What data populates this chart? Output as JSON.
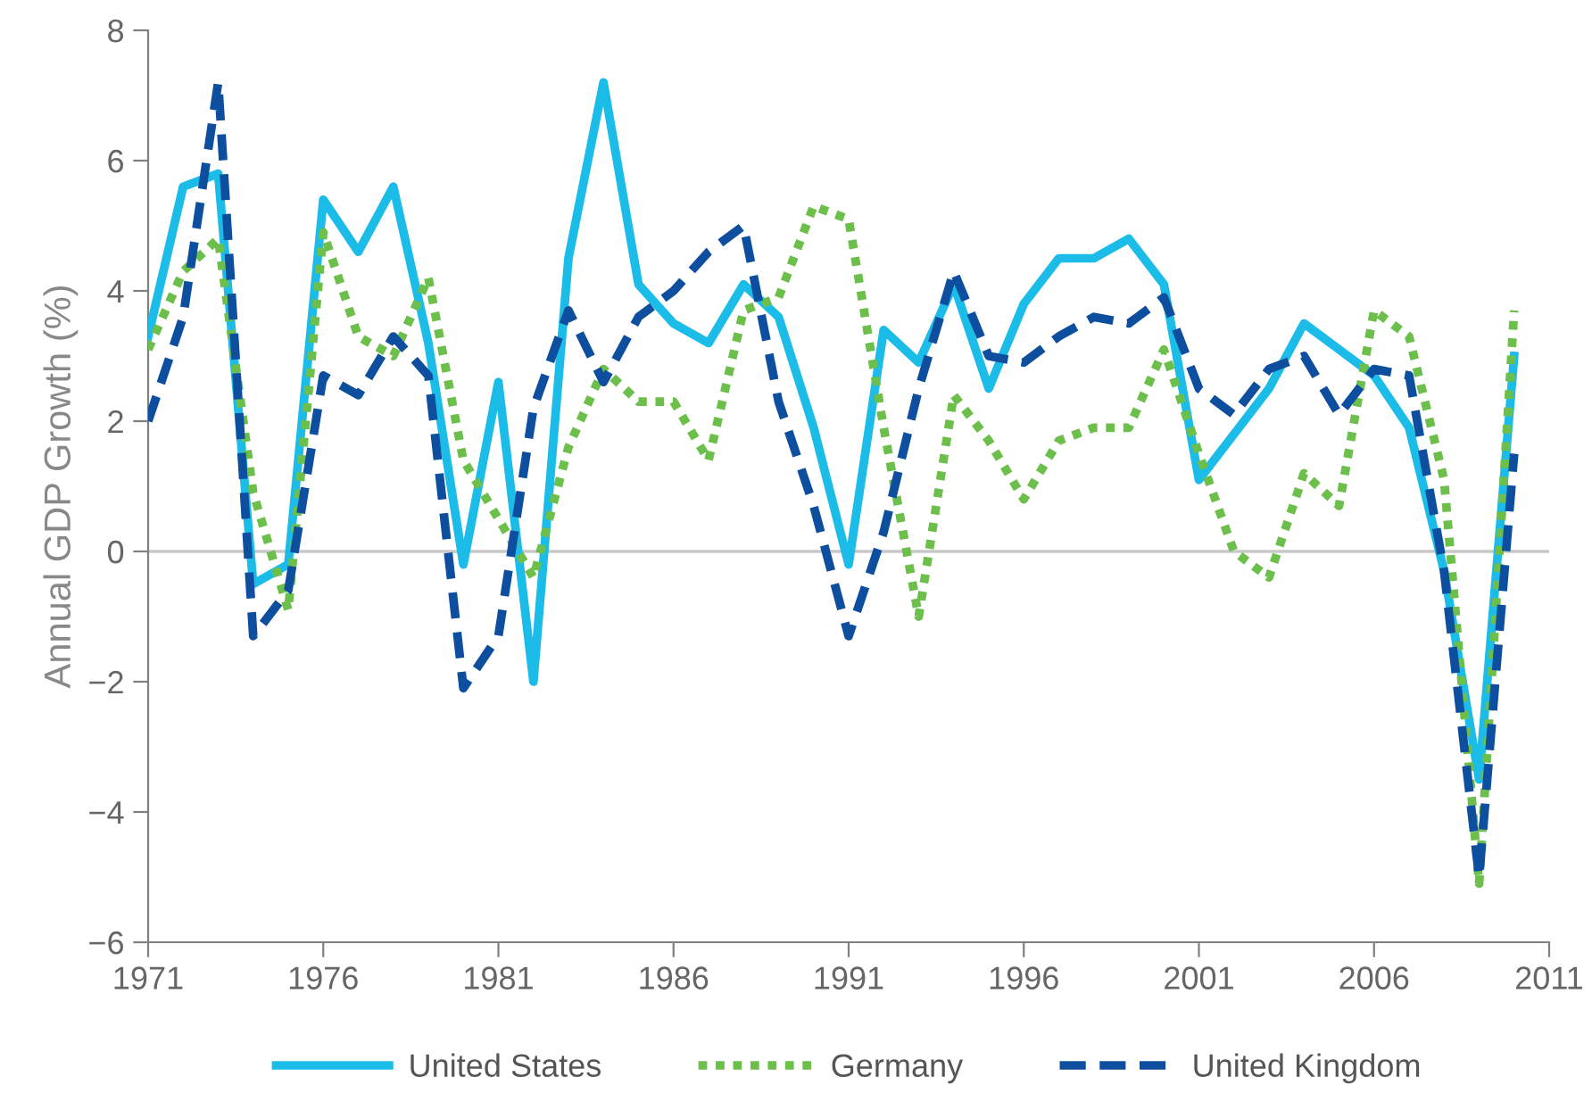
{
  "chart_data": {
    "type": "line",
    "ylabel": "Annual GDP Growth (%)",
    "x": [
      1971,
      1972,
      1973,
      1974,
      1975,
      1976,
      1977,
      1978,
      1979,
      1980,
      1981,
      1982,
      1983,
      1984,
      1985,
      1986,
      1987,
      1988,
      1989,
      1990,
      1991,
      1992,
      1993,
      1994,
      1995,
      1996,
      1997,
      1998,
      1999,
      2000,
      2001,
      2002,
      2003,
      2004,
      2005,
      2006,
      2007,
      2008,
      2009,
      2010
    ],
    "series": [
      {
        "name": "United States",
        "color": "#1cbce8",
        "line_style": "solid",
        "values": [
          3.3,
          5.6,
          5.8,
          -0.5,
          -0.2,
          5.4,
          4.6,
          5.6,
          3.2,
          -0.2,
          2.6,
          -2.0,
          4.5,
          7.2,
          4.1,
          3.5,
          3.2,
          4.1,
          3.6,
          1.9,
          -0.2,
          3.4,
          2.9,
          4.1,
          2.5,
          3.8,
          4.5,
          4.5,
          4.8,
          4.1,
          1.1,
          1.8,
          2.5,
          3.5,
          3.1,
          2.7,
          1.9,
          -0.3,
          -3.5,
          3.0
        ]
      },
      {
        "name": "Germany",
        "color": "#6cbf4a",
        "line_style": "dotted",
        "values": [
          3.1,
          4.3,
          4.8,
          0.9,
          -0.9,
          4.9,
          3.3,
          3.0,
          4.2,
          1.4,
          0.5,
          -0.4,
          1.6,
          2.8,
          2.3,
          2.3,
          1.4,
          3.7,
          3.9,
          5.3,
          5.1,
          1.9,
          -1.0,
          2.4,
          1.7,
          0.8,
          1.7,
          1.9,
          1.9,
          3.1,
          1.5,
          0.0,
          -0.4,
          1.2,
          0.7,
          3.7,
          3.3,
          1.1,
          -5.1,
          3.7
        ]
      },
      {
        "name": "United Kingdom",
        "color": "#0d4f9e",
        "line_style": "dashed",
        "values": [
          2.0,
          3.6,
          7.2,
          -1.3,
          -0.6,
          2.7,
          2.4,
          3.3,
          2.7,
          -2.1,
          -1.3,
          2.2,
          3.7,
          2.6,
          3.6,
          4.0,
          4.6,
          5.0,
          2.3,
          0.7,
          -1.3,
          0.3,
          2.5,
          4.3,
          3.0,
          2.9,
          3.3,
          3.6,
          3.5,
          3.9,
          2.5,
          2.1,
          2.8,
          3.0,
          2.1,
          2.8,
          2.7,
          -0.3,
          -5.0,
          1.5
        ]
      }
    ],
    "xlim": [
      1971,
      2011
    ],
    "xticks": [
      1971,
      1976,
      1981,
      1986,
      1991,
      1996,
      2001,
      2006,
      2011
    ],
    "ylim": [
      -6,
      8
    ],
    "yticks": [
      {
        "value": -6,
        "label": "−6"
      },
      {
        "value": -4,
        "label": "−4"
      },
      {
        "value": -2,
        "label": "−2"
      },
      0,
      2,
      4,
      6,
      8
    ],
    "ref_lines": [
      {
        "axis": "y",
        "value": 0,
        "color": "#c8c8c8"
      }
    ],
    "grid": false,
    "legend": "bottom",
    "marker": "none"
  }
}
